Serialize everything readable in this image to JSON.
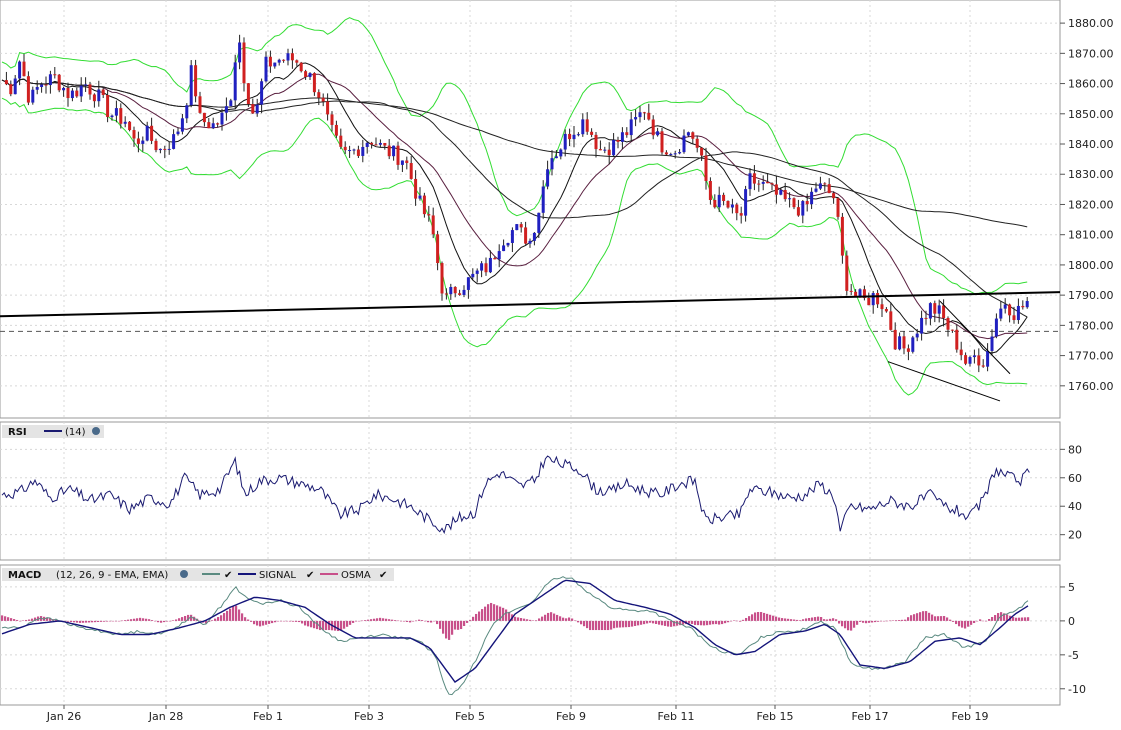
{
  "colors": {
    "up_candle": "#2020c0",
    "down_candle": "#d02020",
    "bollinger": "#33dd33",
    "ma_short": "#111111",
    "ma_mid": "#5a2040",
    "ma_long": "#222222",
    "rsi_line": "#1a1a70",
    "macd_line": "#5a8a80",
    "signal_line": "#14147a",
    "osma_bars": "#c8508a",
    "grid": "#d8d8d8",
    "trendline": "#000000"
  },
  "chart_data": [
    {
      "type": "candlestick",
      "name": "price",
      "y_ticks": [
        "1760.00",
        "1770.00",
        "1780.00",
        "1790.00",
        "1800.00",
        "1810.00",
        "1820.00",
        "1830.00",
        "1840.00",
        "1850.00",
        "1860.00",
        "1870.00",
        "1880.00"
      ],
      "ylim": [
        1752,
        1885
      ],
      "x_ticks": [
        "Jan 26",
        "Jan 28",
        "Feb 1",
        "Feb 3",
        "Feb 5",
        "Feb 9",
        "Feb 11",
        "Feb 15",
        "Feb 17",
        "Feb 19"
      ],
      "anchors": [
        [
          0,
          1862
        ],
        [
          10,
          1858
        ],
        [
          20,
          1868
        ],
        [
          30,
          1854
        ],
        [
          40,
          1860
        ],
        [
          55,
          1862
        ],
        [
          70,
          1856
        ],
        [
          85,
          1860
        ],
        [
          100,
          1855
        ],
        [
          110,
          1850
        ],
        [
          125,
          1848
        ],
        [
          135,
          1840
        ],
        [
          145,
          1844
        ],
        [
          160,
          1838
        ],
        [
          175,
          1842
        ],
        [
          185,
          1852
        ],
        [
          192,
          1865
        ],
        [
          200,
          1848
        ],
        [
          215,
          1846
        ],
        [
          225,
          1850
        ],
        [
          232,
          1858
        ],
        [
          238,
          1878
        ],
        [
          245,
          1860
        ],
        [
          255,
          1848
        ],
        [
          265,
          1866
        ],
        [
          280,
          1868
        ],
        [
          295,
          1868
        ],
        [
          310,
          1862
        ],
        [
          320,
          1856
        ],
        [
          330,
          1845
        ],
        [
          342,
          1836
        ],
        [
          355,
          1838
        ],
        [
          370,
          1842
        ],
        [
          385,
          1838
        ],
        [
          405,
          1835
        ],
        [
          420,
          1820
        ],
        [
          432,
          1812
        ],
        [
          440,
          1796
        ],
        [
          445,
          1788
        ],
        [
          455,
          1792
        ],
        [
          470,
          1795
        ],
        [
          480,
          1798
        ],
        [
          490,
          1800
        ],
        [
          500,
          1808
        ],
        [
          515,
          1812
        ],
        [
          530,
          1808
        ],
        [
          540,
          1820
        ],
        [
          548,
          1835
        ],
        [
          558,
          1838
        ],
        [
          570,
          1844
        ],
        [
          585,
          1848
        ],
        [
          600,
          1838
        ],
        [
          615,
          1840
        ],
        [
          630,
          1845
        ],
        [
          645,
          1852
        ],
        [
          660,
          1840
        ],
        [
          675,
          1838
        ],
        [
          690,
          1845
        ],
        [
          700,
          1836
        ],
        [
          710,
          1822
        ],
        [
          725,
          1820
        ],
        [
          740,
          1815
        ],
        [
          750,
          1828
        ],
        [
          765,
          1826
        ],
        [
          780,
          1822
        ],
        [
          790,
          1820
        ],
        [
          805,
          1818
        ],
        [
          815,
          1826
        ],
        [
          825,
          1825
        ],
        [
          835,
          1822
        ],
        [
          840,
          1808
        ],
        [
          845,
          1795
        ],
        [
          855,
          1790
        ],
        [
          865,
          1788
        ],
        [
          875,
          1790
        ],
        [
          885,
          1786
        ],
        [
          895,
          1775
        ],
        [
          905,
          1772
        ],
        [
          915,
          1778
        ],
        [
          930,
          1786
        ],
        [
          940,
          1784
        ],
        [
          950,
          1778
        ],
        [
          960,
          1772
        ],
        [
          968,
          1766
        ],
        [
          975,
          1770
        ],
        [
          985,
          1768
        ],
        [
          995,
          1782
        ],
        [
          1005,
          1788
        ],
        [
          1015,
          1784
        ],
        [
          1022,
          1786
        ],
        [
          1028,
          1788
        ]
      ],
      "bollinger_spread": 13,
      "moving_averages": [
        "short",
        "mid",
        "long"
      ],
      "trendlines": [
        {
          "from": [
            0,
            1783
          ],
          "to": [
            1060,
            1791
          ],
          "style": "thick"
        },
        {
          "from": [
            888,
            1768
          ],
          "to": [
            1000,
            1755
          ],
          "style": "thin"
        },
        {
          "from": [
            940,
            1788
          ],
          "to": [
            1010,
            1764
          ],
          "style": "thin"
        }
      ],
      "reference_line": 1778
    },
    {
      "type": "line",
      "name": "RSI",
      "label": "RSI",
      "param": "(14)",
      "y_ticks": [
        "20",
        "40",
        "60",
        "80"
      ],
      "ylim": [
        5,
        95
      ],
      "anchors": [
        [
          0,
          48
        ],
        [
          20,
          50
        ],
        [
          35,
          58
        ],
        [
          50,
          46
        ],
        [
          70,
          52
        ],
        [
          90,
          44
        ],
        [
          110,
          48
        ],
        [
          130,
          38
        ],
        [
          150,
          46
        ],
        [
          170,
          42
        ],
        [
          185,
          60
        ],
        [
          200,
          48
        ],
        [
          220,
          52
        ],
        [
          235,
          72
        ],
        [
          245,
          48
        ],
        [
          260,
          58
        ],
        [
          280,
          60
        ],
        [
          300,
          56
        ],
        [
          320,
          52
        ],
        [
          340,
          34
        ],
        [
          360,
          38
        ],
        [
          375,
          48
        ],
        [
          390,
          46
        ],
        [
          410,
          40
        ],
        [
          430,
          30
        ],
        [
          445,
          24
        ],
        [
          460,
          32
        ],
        [
          475,
          36
        ],
        [
          485,
          56
        ],
        [
          500,
          64
        ],
        [
          520,
          54
        ],
        [
          535,
          58
        ],
        [
          545,
          74
        ],
        [
          560,
          70
        ],
        [
          580,
          66
        ],
        [
          595,
          52
        ],
        [
          610,
          50
        ],
        [
          625,
          56
        ],
        [
          640,
          52
        ],
        [
          660,
          48
        ],
        [
          680,
          56
        ],
        [
          695,
          58
        ],
        [
          705,
          30
        ],
        [
          720,
          32
        ],
        [
          740,
          34
        ],
        [
          750,
          52
        ],
        [
          770,
          50
        ],
        [
          790,
          46
        ],
        [
          805,
          48
        ],
        [
          820,
          56
        ],
        [
          835,
          46
        ],
        [
          840,
          22
        ],
        [
          850,
          40
        ],
        [
          870,
          38
        ],
        [
          890,
          44
        ],
        [
          910,
          40
        ],
        [
          930,
          48
        ],
        [
          945,
          40
        ],
        [
          960,
          36
        ],
        [
          970,
          32
        ],
        [
          985,
          46
        ],
        [
          995,
          66
        ],
        [
          1010,
          60
        ],
        [
          1022,
          58
        ],
        [
          1028,
          64
        ]
      ]
    },
    {
      "type": "line",
      "name": "MACD",
      "label": "MACD",
      "param": "(12, 26, 9 - EMA, EMA)",
      "series_labels": [
        "SIGNAL",
        "OSMA"
      ],
      "y_ticks": [
        "-10",
        "-5",
        "0",
        "5"
      ],
      "ylim": [
        -11.8,
        7.2
      ],
      "macd_anchors": [
        [
          0,
          -1
        ],
        [
          20,
          -1
        ],
        [
          40,
          0.5
        ],
        [
          60,
          0
        ],
        [
          80,
          -1
        ],
        [
          100,
          -1.5
        ],
        [
          120,
          -2
        ],
        [
          140,
          -1.5
        ],
        [
          160,
          -2
        ],
        [
          175,
          -1
        ],
        [
          190,
          0.5
        ],
        [
          205,
          -0.5
        ],
        [
          220,
          2
        ],
        [
          235,
          5
        ],
        [
          245,
          3.5
        ],
        [
          260,
          2.5
        ],
        [
          280,
          3
        ],
        [
          300,
          2
        ],
        [
          320,
          -1
        ],
        [
          340,
          -3
        ],
        [
          360,
          -2.5
        ],
        [
          380,
          -2
        ],
        [
          400,
          -2.5
        ],
        [
          420,
          -3
        ],
        [
          435,
          -5
        ],
        [
          448,
          -11
        ],
        [
          460,
          -10
        ],
        [
          475,
          -6
        ],
        [
          490,
          -1
        ],
        [
          505,
          1
        ],
        [
          520,
          2
        ],
        [
          535,
          3
        ],
        [
          550,
          6
        ],
        [
          570,
          6.5
        ],
        [
          590,
          4
        ],
        [
          610,
          2
        ],
        [
          630,
          1.5
        ],
        [
          650,
          1.5
        ],
        [
          670,
          0
        ],
        [
          690,
          -1
        ],
        [
          705,
          -3
        ],
        [
          720,
          -4.5
        ],
        [
          740,
          -5
        ],
        [
          760,
          -2.5
        ],
        [
          780,
          -1.5
        ],
        [
          800,
          -1.5
        ],
        [
          820,
          0
        ],
        [
          835,
          -1
        ],
        [
          850,
          -6
        ],
        [
          865,
          -7
        ],
        [
          885,
          -7
        ],
        [
          905,
          -6
        ],
        [
          925,
          -2.5
        ],
        [
          945,
          -2
        ],
        [
          965,
          -4
        ],
        [
          985,
          -3
        ],
        [
          1000,
          0.5
        ],
        [
          1015,
          1.5
        ],
        [
          1028,
          2.8
        ]
      ],
      "signal_anchors": [
        [
          0,
          -2
        ],
        [
          30,
          -0.5
        ],
        [
          60,
          0
        ],
        [
          90,
          -1
        ],
        [
          120,
          -2
        ],
        [
          150,
          -2
        ],
        [
          180,
          -1
        ],
        [
          205,
          0
        ],
        [
          230,
          2
        ],
        [
          255,
          3.5
        ],
        [
          280,
          3
        ],
        [
          305,
          2
        ],
        [
          330,
          -0.5
        ],
        [
          355,
          -2.5
        ],
        [
          385,
          -2.5
        ],
        [
          410,
          -2.5
        ],
        [
          430,
          -4
        ],
        [
          455,
          -9
        ],
        [
          475,
          -7
        ],
        [
          495,
          -3
        ],
        [
          515,
          1
        ],
        [
          540,
          3.5
        ],
        [
          565,
          6
        ],
        [
          590,
          5.5
        ],
        [
          615,
          3
        ],
        [
          645,
          2
        ],
        [
          670,
          1
        ],
        [
          695,
          -1
        ],
        [
          715,
          -3.5
        ],
        [
          735,
          -5
        ],
        [
          755,
          -4.5
        ],
        [
          780,
          -2
        ],
        [
          805,
          -1.5
        ],
        [
          825,
          -0.5
        ],
        [
          840,
          -2
        ],
        [
          860,
          -6.5
        ],
        [
          885,
          -7
        ],
        [
          910,
          -6
        ],
        [
          935,
          -3
        ],
        [
          960,
          -2.5
        ],
        [
          980,
          -3.5
        ],
        [
          1000,
          -1
        ],
        [
          1015,
          1
        ],
        [
          1028,
          2.2
        ]
      ]
    }
  ]
}
